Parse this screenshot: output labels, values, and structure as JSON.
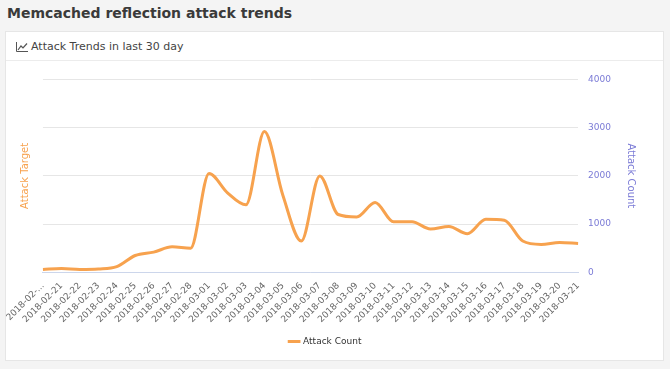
{
  "heading": "Memcached reflection attack trends",
  "chart_data": {
    "type": "line",
    "title": "Attack Trends in last 30 day",
    "y_label": "Attack Target",
    "y2_label": "Attack Count",
    "categories": [
      "2018-02-...",
      "2018-02-21",
      "2018-02-22",
      "2018-02-23",
      "2018-02-24",
      "2018-02-25",
      "2018-02-26",
      "2018-02-27",
      "2018-02-28",
      "2018-03-01",
      "2018-03-02",
      "2018-03-03",
      "2018-03-04",
      "2018-03-05",
      "2018-03-06",
      "2018-03-07",
      "2018-03-08",
      "2018-03-09",
      "2018-03-10",
      "2018-03-11",
      "2018-03-12",
      "2018-03-13",
      "2018-03-14",
      "2018-03-15",
      "2018-03-16",
      "2018-03-17",
      "2018-03-18",
      "2018-03-19",
      "2018-03-20",
      "2018-03-21"
    ],
    "series": [
      {
        "name": "Attack Count",
        "color": "#f7a24e",
        "axis": "y2",
        "values": [
          60,
          80,
          60,
          70,
          120,
          350,
          420,
          530,
          500,
          2050,
          1650,
          1400,
          2920,
          1600,
          650,
          2000,
          1200,
          1150,
          1450,
          1050,
          1050,
          900,
          950,
          800,
          1100,
          1080,
          650,
          580,
          620,
          600
        ]
      }
    ],
    "y2lim": [
      0,
      4000
    ],
    "y2ticks": [
      0,
      1000,
      2000,
      3000,
      4000
    ],
    "grid": true,
    "legend": "bottom"
  }
}
